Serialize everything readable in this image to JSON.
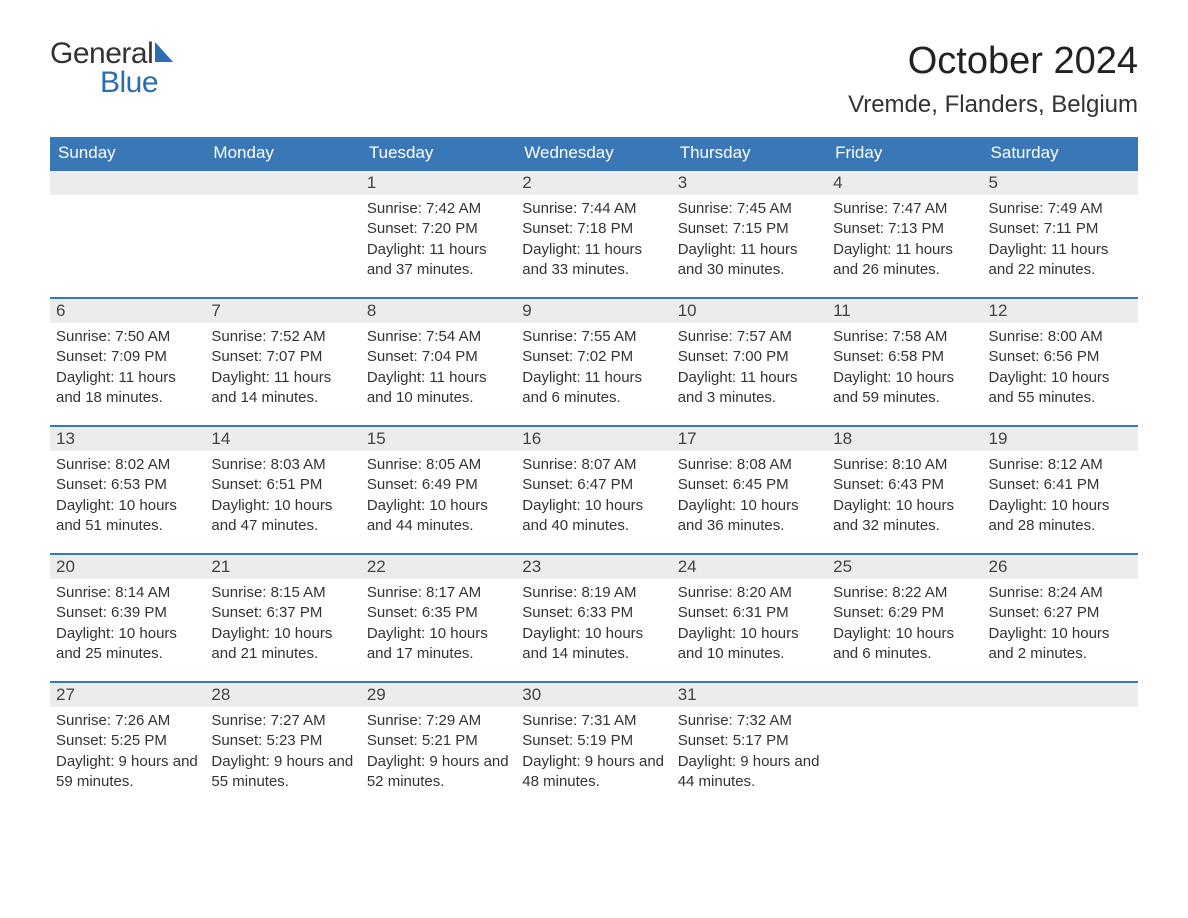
{
  "logo": {
    "text_top": "General",
    "text_bottom": "Blue",
    "text_top_color": "#333333",
    "text_bottom_color": "#2a6db0",
    "sail_color": "#2a6db0"
  },
  "header": {
    "month_title": "October 2024",
    "location": "Vremde, Flanders, Belgium"
  },
  "colors": {
    "header_bg": "#3a77b6",
    "header_text": "#ffffff",
    "daynum_bg": "#ececec",
    "daynum_border": "#3a77b6",
    "body_text": "#333333",
    "page_bg": "#ffffff"
  },
  "fonts": {
    "month_title_size": 38,
    "location_size": 24,
    "weekday_size": 17,
    "daynum_size": 17,
    "body_size": 15
  },
  "weekdays": [
    "Sunday",
    "Monday",
    "Tuesday",
    "Wednesday",
    "Thursday",
    "Friday",
    "Saturday"
  ],
  "weeks": [
    [
      null,
      null,
      {
        "n": "1",
        "sunrise": "7:42 AM",
        "sunset": "7:20 PM",
        "daylight": "11 hours and 37 minutes."
      },
      {
        "n": "2",
        "sunrise": "7:44 AM",
        "sunset": "7:18 PM",
        "daylight": "11 hours and 33 minutes."
      },
      {
        "n": "3",
        "sunrise": "7:45 AM",
        "sunset": "7:15 PM",
        "daylight": "11 hours and 30 minutes."
      },
      {
        "n": "4",
        "sunrise": "7:47 AM",
        "sunset": "7:13 PM",
        "daylight": "11 hours and 26 minutes."
      },
      {
        "n": "5",
        "sunrise": "7:49 AM",
        "sunset": "7:11 PM",
        "daylight": "11 hours and 22 minutes."
      }
    ],
    [
      {
        "n": "6",
        "sunrise": "7:50 AM",
        "sunset": "7:09 PM",
        "daylight": "11 hours and 18 minutes."
      },
      {
        "n": "7",
        "sunrise": "7:52 AM",
        "sunset": "7:07 PM",
        "daylight": "11 hours and 14 minutes."
      },
      {
        "n": "8",
        "sunrise": "7:54 AM",
        "sunset": "7:04 PM",
        "daylight": "11 hours and 10 minutes."
      },
      {
        "n": "9",
        "sunrise": "7:55 AM",
        "sunset": "7:02 PM",
        "daylight": "11 hours and 6 minutes."
      },
      {
        "n": "10",
        "sunrise": "7:57 AM",
        "sunset": "7:00 PM",
        "daylight": "11 hours and 3 minutes."
      },
      {
        "n": "11",
        "sunrise": "7:58 AM",
        "sunset": "6:58 PM",
        "daylight": "10 hours and 59 minutes."
      },
      {
        "n": "12",
        "sunrise": "8:00 AM",
        "sunset": "6:56 PM",
        "daylight": "10 hours and 55 minutes."
      }
    ],
    [
      {
        "n": "13",
        "sunrise": "8:02 AM",
        "sunset": "6:53 PM",
        "daylight": "10 hours and 51 minutes."
      },
      {
        "n": "14",
        "sunrise": "8:03 AM",
        "sunset": "6:51 PM",
        "daylight": "10 hours and 47 minutes."
      },
      {
        "n": "15",
        "sunrise": "8:05 AM",
        "sunset": "6:49 PM",
        "daylight": "10 hours and 44 minutes."
      },
      {
        "n": "16",
        "sunrise": "8:07 AM",
        "sunset": "6:47 PM",
        "daylight": "10 hours and 40 minutes."
      },
      {
        "n": "17",
        "sunrise": "8:08 AM",
        "sunset": "6:45 PM",
        "daylight": "10 hours and 36 minutes."
      },
      {
        "n": "18",
        "sunrise": "8:10 AM",
        "sunset": "6:43 PM",
        "daylight": "10 hours and 32 minutes."
      },
      {
        "n": "19",
        "sunrise": "8:12 AM",
        "sunset": "6:41 PM",
        "daylight": "10 hours and 28 minutes."
      }
    ],
    [
      {
        "n": "20",
        "sunrise": "8:14 AM",
        "sunset": "6:39 PM",
        "daylight": "10 hours and 25 minutes."
      },
      {
        "n": "21",
        "sunrise": "8:15 AM",
        "sunset": "6:37 PM",
        "daylight": "10 hours and 21 minutes."
      },
      {
        "n": "22",
        "sunrise": "8:17 AM",
        "sunset": "6:35 PM",
        "daylight": "10 hours and 17 minutes."
      },
      {
        "n": "23",
        "sunrise": "8:19 AM",
        "sunset": "6:33 PM",
        "daylight": "10 hours and 14 minutes."
      },
      {
        "n": "24",
        "sunrise": "8:20 AM",
        "sunset": "6:31 PM",
        "daylight": "10 hours and 10 minutes."
      },
      {
        "n": "25",
        "sunrise": "8:22 AM",
        "sunset": "6:29 PM",
        "daylight": "10 hours and 6 minutes."
      },
      {
        "n": "26",
        "sunrise": "8:24 AM",
        "sunset": "6:27 PM",
        "daylight": "10 hours and 2 minutes."
      }
    ],
    [
      {
        "n": "27",
        "sunrise": "7:26 AM",
        "sunset": "5:25 PM",
        "daylight": "9 hours and 59 minutes."
      },
      {
        "n": "28",
        "sunrise": "7:27 AM",
        "sunset": "5:23 PM",
        "daylight": "9 hours and 55 minutes."
      },
      {
        "n": "29",
        "sunrise": "7:29 AM",
        "sunset": "5:21 PM",
        "daylight": "9 hours and 52 minutes."
      },
      {
        "n": "30",
        "sunrise": "7:31 AM",
        "sunset": "5:19 PM",
        "daylight": "9 hours and 48 minutes."
      },
      {
        "n": "31",
        "sunrise": "7:32 AM",
        "sunset": "5:17 PM",
        "daylight": "9 hours and 44 minutes."
      },
      null,
      null
    ]
  ],
  "labels": {
    "sunrise": "Sunrise:",
    "sunset": "Sunset:",
    "daylight": "Daylight:"
  }
}
